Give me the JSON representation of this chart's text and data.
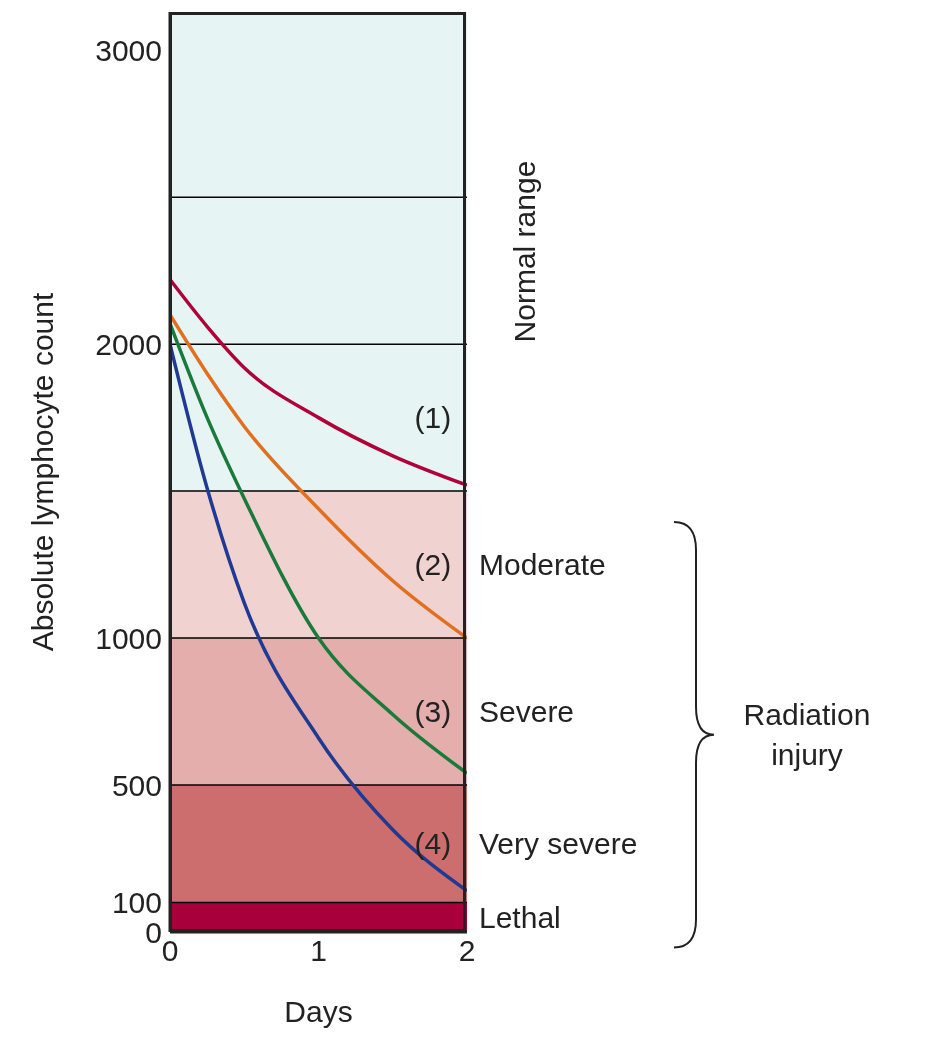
{
  "chart_data": {
    "type": "line",
    "xlabel": "Days",
    "ylabel": "Absolute lymphocyte count",
    "x": [
      0,
      0.25,
      0.5,
      1,
      1.5,
      2
    ],
    "series": [
      {
        "color": "#b0003a",
        "values": [
          2220,
          2060,
          1920,
          1750,
          1620,
          1520
        ]
      },
      {
        "color": "#e07020",
        "values": [
          2100,
          1900,
          1720,
          1440,
          1195,
          1000
        ]
      },
      {
        "color": "#1a7a3a",
        "values": [
          2070,
          1750,
          1475,
          1000,
          740,
          540
        ]
      },
      {
        "color": "#1f3a93",
        "values": [
          2000,
          1510,
          1120,
          660,
          348,
          140
        ]
      }
    ],
    "xlim": [
      0,
      2
    ],
    "xticks": [
      0,
      1,
      2
    ],
    "ylim": [
      0,
      3130
    ],
    "yticks": [
      0,
      100,
      500,
      1000,
      2000,
      3000
    ],
    "bands": [
      {
        "axis": "y",
        "from": 1500,
        "to": 3130,
        "label": "Normal range",
        "color": "#e6f4f4"
      },
      {
        "axis": "y",
        "from": 1000,
        "to": 1500,
        "label": "Moderate",
        "color": "#f0d2d0"
      },
      {
        "axis": "y",
        "from": 500,
        "to": 1000,
        "label": "Severe",
        "color": "#e3aeac"
      },
      {
        "axis": "y",
        "from": 100,
        "to": 500,
        "label": "Very severe",
        "color": "#cc6e6e"
      },
      {
        "axis": "y",
        "from": 0,
        "to": 100,
        "label": "Lethal",
        "color": "#a8003a"
      }
    ],
    "ref_lines": [
      {
        "axis": "y",
        "value": 2500,
        "color": "#000000"
      },
      {
        "axis": "y",
        "value": 2000,
        "color": "#000000"
      },
      {
        "axis": "y",
        "value": 1500,
        "color": "#000000"
      },
      {
        "axis": "y",
        "value": 1000,
        "color": "#000000"
      },
      {
        "axis": "y",
        "value": 500,
        "color": "#000000"
      },
      {
        "axis": "y",
        "value": 100,
        "color": "#000000"
      }
    ],
    "annotations": [
      "(1)",
      "(2)",
      "(3)",
      "(4)",
      "Radiation injury"
    ],
    "line_style": "solid",
    "marker": "none"
  }
}
